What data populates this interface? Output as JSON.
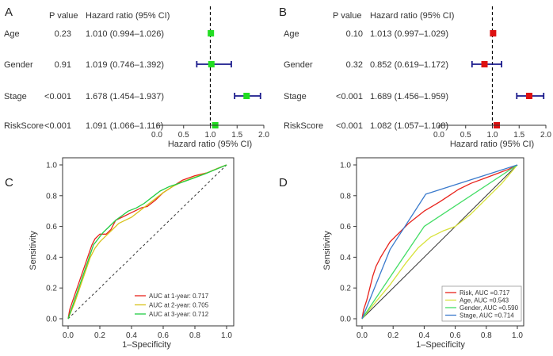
{
  "chart_data": [
    {
      "panel": "A",
      "type": "forest",
      "header_p": "P value",
      "header_hr": "Hazard ratio (95% CI)",
      "xlabel": "Hazard ratio (95% CI)",
      "xlim": [
        0,
        2.0
      ],
      "xticks": [
        "0.0",
        "0.5",
        "1.0",
        "1.5",
        "2.0"
      ],
      "ref_line": 1.0,
      "marker_color": "#22dd22",
      "rows": [
        {
          "label": "Age",
          "p": "0.23",
          "hr_text": "1.010 (0.994–1.026)",
          "hr": 1.01,
          "lo": 0.994,
          "hi": 1.026
        },
        {
          "label": "Gender",
          "p": "0.91",
          "hr_text": "1.019 (0.746–1.392)",
          "hr": 1.019,
          "lo": 0.746,
          "hi": 1.392
        },
        {
          "label": "Stage",
          "p": "<0.001",
          "hr_text": "1.678 (1.454–1.937)",
          "hr": 1.678,
          "lo": 1.454,
          "hi": 1.937
        },
        {
          "label": "RiskScore",
          "p": "<0.001",
          "hr_text": "1.091 (1.066–1.116)",
          "hr": 1.091,
          "lo": 1.066,
          "hi": 1.116
        }
      ]
    },
    {
      "panel": "B",
      "type": "forest",
      "header_p": "P value",
      "header_hr": "Hazard ratio (95% CI)",
      "xlabel": "Hazard ratio (95% CI)",
      "xlim": [
        0,
        2.0
      ],
      "xticks": [
        "0.0",
        "0.5",
        "1.0",
        "1.5",
        "2.0"
      ],
      "ref_line": 1.0,
      "marker_color": "#dd1111",
      "rows": [
        {
          "label": "Age",
          "p": "0.10",
          "hr_text": "1.013 (0.997–1.029)",
          "hr": 1.013,
          "lo": 0.997,
          "hi": 1.029
        },
        {
          "label": "Gender",
          "p": "0.32",
          "hr_text": "0.852 (0.619–1.172)",
          "hr": 0.852,
          "lo": 0.619,
          "hi": 1.172
        },
        {
          "label": "Stage",
          "p": "<0.001",
          "hr_text": "1.689 (1.456–1.959)",
          "hr": 1.689,
          "lo": 1.456,
          "hi": 1.959
        },
        {
          "label": "RiskScore",
          "p": "<0.001",
          "hr_text": "1.082 (1.057–1.108)",
          "hr": 1.082,
          "lo": 1.057,
          "hi": 1.108
        }
      ]
    },
    {
      "panel": "C",
      "type": "line",
      "xlabel": "1–Specificity",
      "ylabel": "Sensitivity",
      "xlim": [
        0,
        1.0
      ],
      "ylim": [
        0,
        1.0
      ],
      "xticks": [
        "0.0",
        "0.2",
        "0.4",
        "0.6",
        "0.8",
        "1.0"
      ],
      "yticks": [
        "0.0",
        "0.2",
        "0.4",
        "0.6",
        "0.8",
        "1.0"
      ],
      "diagonal": "dashed",
      "series": [
        {
          "name": "AUC at 1-year: 0.717",
          "color": "#e8231c",
          "points": [
            [
              0,
              0
            ],
            [
              0.01,
              0.06
            ],
            [
              0.03,
              0.12
            ],
            [
              0.05,
              0.18
            ],
            [
              0.07,
              0.24
            ],
            [
              0.09,
              0.3
            ],
            [
              0.11,
              0.36
            ],
            [
              0.13,
              0.42
            ],
            [
              0.15,
              0.48
            ],
            [
              0.17,
              0.52
            ],
            [
              0.2,
              0.55
            ],
            [
              0.24,
              0.55
            ],
            [
              0.27,
              0.58
            ],
            [
              0.3,
              0.64
            ],
            [
              0.34,
              0.66
            ],
            [
              0.38,
              0.68
            ],
            [
              0.42,
              0.7
            ],
            [
              0.46,
              0.72
            ],
            [
              0.5,
              0.73
            ],
            [
              0.55,
              0.77
            ],
            [
              0.6,
              0.82
            ],
            [
              0.66,
              0.86
            ],
            [
              0.72,
              0.9
            ],
            [
              0.8,
              0.93
            ],
            [
              0.88,
              0.95
            ],
            [
              0.95,
              0.98
            ],
            [
              1,
              1
            ]
          ]
        },
        {
          "name": "AUC at 2-year: 0.705",
          "color": "#d8c21a",
          "points": [
            [
              0,
              0
            ],
            [
              0.02,
              0.05
            ],
            [
              0.04,
              0.1
            ],
            [
              0.06,
              0.16
            ],
            [
              0.08,
              0.22
            ],
            [
              0.1,
              0.28
            ],
            [
              0.12,
              0.34
            ],
            [
              0.14,
              0.4
            ],
            [
              0.17,
              0.46
            ],
            [
              0.2,
              0.5
            ],
            [
              0.24,
              0.54
            ],
            [
              0.28,
              0.58
            ],
            [
              0.32,
              0.62
            ],
            [
              0.36,
              0.64
            ],
            [
              0.4,
              0.66
            ],
            [
              0.45,
              0.7
            ],
            [
              0.5,
              0.74
            ],
            [
              0.55,
              0.78
            ],
            [
              0.6,
              0.82
            ],
            [
              0.66,
              0.86
            ],
            [
              0.72,
              0.89
            ],
            [
              0.8,
              0.92
            ],
            [
              0.88,
              0.95
            ],
            [
              0.95,
              0.98
            ],
            [
              1,
              1
            ]
          ]
        },
        {
          "name": "AUC at 3-year: 0.712",
          "color": "#22cc44",
          "points": [
            [
              0,
              0
            ],
            [
              0.02,
              0.06
            ],
            [
              0.04,
              0.12
            ],
            [
              0.06,
              0.18
            ],
            [
              0.08,
              0.24
            ],
            [
              0.1,
              0.3
            ],
            [
              0.12,
              0.36
            ],
            [
              0.14,
              0.42
            ],
            [
              0.16,
              0.48
            ],
            [
              0.19,
              0.52
            ],
            [
              0.22,
              0.56
            ],
            [
              0.26,
              0.6
            ],
            [
              0.3,
              0.64
            ],
            [
              0.34,
              0.67
            ],
            [
              0.38,
              0.7
            ],
            [
              0.43,
              0.72
            ],
            [
              0.48,
              0.75
            ],
            [
              0.53,
              0.79
            ],
            [
              0.58,
              0.83
            ],
            [
              0.64,
              0.86
            ],
            [
              0.7,
              0.88
            ],
            [
              0.78,
              0.91
            ],
            [
              0.86,
              0.94
            ],
            [
              0.93,
              0.97
            ],
            [
              1,
              1
            ]
          ]
        }
      ]
    },
    {
      "panel": "D",
      "type": "line",
      "xlabel": "1–Specificity",
      "ylabel": "Sensitivity",
      "xlim": [
        0,
        1.0
      ],
      "ylim": [
        0,
        1.0
      ],
      "xticks": [
        "0.0",
        "0.2",
        "0.4",
        "0.6",
        "0.8",
        "1.0"
      ],
      "yticks": [
        "0.0",
        "0.2",
        "0.4",
        "0.6",
        "0.8",
        "1.0"
      ],
      "diagonal": "solid",
      "series": [
        {
          "name": "Risk, AUC =0.717",
          "color": "#e8231c",
          "points": [
            [
              0,
              0
            ],
            [
              0.01,
              0.06
            ],
            [
              0.03,
              0.12
            ],
            [
              0.05,
              0.2
            ],
            [
              0.07,
              0.28
            ],
            [
              0.09,
              0.34
            ],
            [
              0.12,
              0.4
            ],
            [
              0.15,
              0.45
            ],
            [
              0.18,
              0.5
            ],
            [
              0.22,
              0.54
            ],
            [
              0.26,
              0.58
            ],
            [
              0.3,
              0.62
            ],
            [
              0.35,
              0.66
            ],
            [
              0.4,
              0.7
            ],
            [
              0.45,
              0.73
            ],
            [
              0.5,
              0.76
            ],
            [
              0.56,
              0.8
            ],
            [
              0.62,
              0.84
            ],
            [
              0.7,
              0.88
            ],
            [
              0.78,
              0.91
            ],
            [
              0.86,
              0.94
            ],
            [
              0.94,
              0.97
            ],
            [
              1,
              1
            ]
          ]
        },
        {
          "name": "Age, AUC =0.543",
          "color": "#d8e23c",
          "points": [
            [
              0,
              0
            ],
            [
              0.08,
              0.1
            ],
            [
              0.18,
              0.22
            ],
            [
              0.28,
              0.36
            ],
            [
              0.36,
              0.46
            ],
            [
              0.44,
              0.53
            ],
            [
              0.52,
              0.57
            ],
            [
              0.6,
              0.6
            ],
            [
              0.7,
              0.68
            ],
            [
              0.8,
              0.78
            ],
            [
              0.9,
              0.88
            ],
            [
              1,
              1
            ]
          ]
        },
        {
          "name": "Gender, AUC =0.590",
          "color": "#44dd66",
          "points": [
            [
              0,
              0
            ],
            [
              0.4,
              0.6
            ],
            [
              1,
              1
            ]
          ]
        },
        {
          "name": "Stage, AUC =0.714",
          "color": "#3a7acc",
          "points": [
            [
              0,
              0
            ],
            [
              0.18,
              0.45
            ],
            [
              0.41,
              0.81
            ],
            [
              1,
              1
            ]
          ]
        }
      ]
    }
  ]
}
